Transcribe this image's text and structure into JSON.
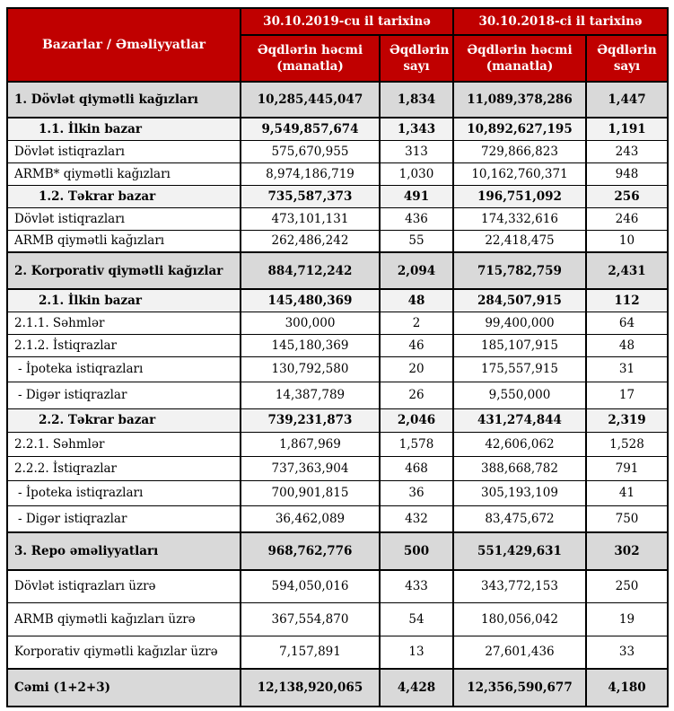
{
  "table": {
    "corner_header": "Bazarlar / Əməliyyatlar",
    "col_groups": [
      {
        "label": "30.10.2019-cu il tarixinə",
        "columns": [
          "Əqdlərin həcmi (manatla)",
          "Əqdlərin sayı"
        ]
      },
      {
        "label": "30.10.2018-ci il tarixinə",
        "columns": [
          "Əqdlərin həcmi (manatla)",
          "Əqdlərin sayı"
        ]
      }
    ],
    "rows": [
      {
        "label": "1. Dövlət qiymətli kağızları",
        "level": "section",
        "values": [
          "10,285,445,047",
          "1,834",
          "11,089,378,286",
          "1,447"
        ]
      },
      {
        "label": "1.1. İlkin bazar",
        "level": "subsection",
        "values": [
          "9,549,857,674",
          "1,343",
          "10,892,627,195",
          "1,191"
        ]
      },
      {
        "label": "Dövlət istiqrazları",
        "level": "item",
        "values": [
          "575,670,955",
          "313",
          "729,866,823",
          "243"
        ]
      },
      {
        "label": "ARMB* qiymətli kağızları",
        "level": "item",
        "values": [
          "8,974,186,719",
          "1,030",
          "10,162,760,371",
          "948"
        ]
      },
      {
        "label": "1.2. Təkrar bazar",
        "level": "subsection",
        "values": [
          "735,587,373",
          "491",
          "196,751,092",
          "256"
        ]
      },
      {
        "label": "Dövlət istiqrazları",
        "level": "item",
        "values": [
          "473,101,131",
          "436",
          "174,332,616",
          "246"
        ]
      },
      {
        "label": "ARMB qiymətli kağızları",
        "level": "item",
        "values": [
          "262,486,242",
          "55",
          "22,418,475",
          "10"
        ]
      },
      {
        "label": "2. Korporativ qiymətli kağızlar",
        "level": "section",
        "values": [
          "884,712,242",
          "2,094",
          "715,782,759",
          "2,431"
        ]
      },
      {
        "label": "2.1. İlkin bazar",
        "level": "subsection",
        "values": [
          "145,480,369",
          "48",
          "284,507,915",
          "112"
        ]
      },
      {
        "label": "2.1.1. Səhmlər",
        "level": "item",
        "values": [
          "300,000",
          "2",
          "99,400,000",
          "64"
        ]
      },
      {
        "label": "2.1.2. İstiqrazlar",
        "level": "item",
        "values": [
          "145,180,369",
          "46",
          "185,107,915",
          "48"
        ]
      },
      {
        "label": "- İpoteka istiqrazları",
        "level": "item-dash",
        "values": [
          "130,792,580",
          "20",
          "175,557,915",
          "31"
        ]
      },
      {
        "label": "- Digər istiqrazlar",
        "level": "item-dash",
        "values": [
          "14,387,789",
          "26",
          "9,550,000",
          "17"
        ]
      },
      {
        "label": "2.2. Təkrar bazar",
        "level": "subsection",
        "values": [
          "739,231,873",
          "2,046",
          "431,274,844",
          "2,319"
        ]
      },
      {
        "label": "2.2.1. Səhmlər",
        "level": "item",
        "values": [
          "1,867,969",
          "1,578",
          "42,606,062",
          "1,528"
        ]
      },
      {
        "label": "2.2.2. İstiqrazlar",
        "level": "item",
        "values": [
          "737,363,904",
          "468",
          "388,668,782",
          "791"
        ]
      },
      {
        "label": "- İpoteka istiqrazları",
        "level": "item-dash",
        "values": [
          "700,901,815",
          "36",
          "305,193,109",
          "41"
        ]
      },
      {
        "label": "- Digər istiqrazlar",
        "level": "item-dash",
        "values": [
          "36,462,089",
          "432",
          "83,475,672",
          "750"
        ]
      },
      {
        "label": "3. Repo əməliyyatları",
        "level": "section",
        "values": [
          "968,762,776",
          "500",
          "551,429,631",
          "302"
        ]
      },
      {
        "label": "Dövlət istiqrazları üzrə",
        "level": "item",
        "values": [
          "594,050,016",
          "433",
          "343,772,153",
          "250"
        ]
      },
      {
        "label": "ARMB qiymətli kağızları üzrə",
        "level": "item",
        "values": [
          "367,554,870",
          "54",
          "180,056,042",
          "19"
        ]
      },
      {
        "label": "Korporativ qiymətli kağızlar üzrə",
        "level": "item",
        "values": [
          "7,157,891",
          "13",
          "27,601,436",
          "33"
        ]
      },
      {
        "label": "Cəmi (1+2+3)",
        "level": "total",
        "values": [
          "12,138,920,065",
          "4,428",
          "12,356,590,677",
          "4,180"
        ]
      }
    ],
    "colors": {
      "header_bg": "#C00000",
      "header_text": "#FFFFFF",
      "section_bg": "#D9D9D9",
      "subsection_bg": "#F2F2F2"
    }
  }
}
